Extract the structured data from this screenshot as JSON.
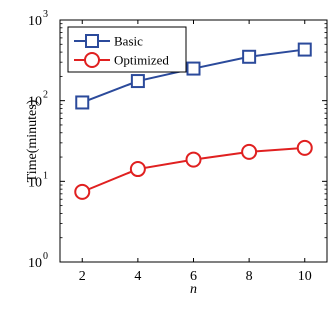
{
  "chart_data": {
    "type": "line",
    "x": [
      2,
      4,
      6,
      8,
      10
    ],
    "xlim": [
      1.2,
      10.8
    ],
    "ylim": [
      1,
      1000
    ],
    "y_scale": "log",
    "xticks": [
      "2",
      "4",
      "6",
      "8",
      "10"
    ],
    "yticks": [
      {
        "value": 1,
        "base": "10",
        "exp": "0"
      },
      {
        "value": 10,
        "base": "10",
        "exp": "1"
      },
      {
        "value": 100,
        "base": "10",
        "exp": "2"
      },
      {
        "value": 1000,
        "base": "10",
        "exp": "3"
      }
    ],
    "xlabel": "n",
    "ylabel": "Time(minutes)",
    "grid": false,
    "legend_position": "top-left",
    "series": [
      {
        "name": "Basic",
        "values": [
          95,
          175,
          250,
          350,
          430
        ],
        "color": "#2b4a9b",
        "marker": "square"
      },
      {
        "name": "Optimized",
        "values": [
          7.4,
          14.2,
          18.6,
          23.2,
          26.0
        ],
        "color": "#e02020",
        "marker": "circle"
      }
    ]
  }
}
